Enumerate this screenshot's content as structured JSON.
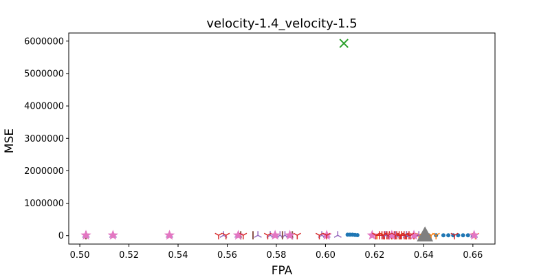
{
  "chart_data": {
    "type": "scatter",
    "title": "velocity-1.4_velocity-1.5",
    "xlabel": "FPA",
    "ylabel": "MSE",
    "xlim": [
      0.4955,
      0.669
    ],
    "ylim": [
      -260000,
      6250000
    ],
    "xticks": [
      0.5,
      0.52,
      0.54,
      0.56,
      0.58,
      0.6,
      0.62,
      0.64,
      0.66
    ],
    "xtick_labels": [
      "0.50",
      "0.52",
      "0.54",
      "0.56",
      "0.58",
      "0.60",
      "0.62",
      "0.64",
      "0.66"
    ],
    "yticks": [
      0,
      1000000,
      2000000,
      3000000,
      4000000,
      5000000,
      6000000
    ],
    "ytick_labels": [
      "0",
      "1000000",
      "2000000",
      "3000000",
      "4000000",
      "5000000",
      "6000000"
    ],
    "grid": false,
    "series": [
      {
        "marker": "circle",
        "color": "#1f77b4",
        "points": [
          [
            0.609,
            30000
          ],
          [
            0.61,
            30000
          ],
          [
            0.611,
            30000
          ],
          [
            0.612,
            20000
          ],
          [
            0.613,
            15000
          ],
          [
            0.627,
            10000
          ],
          [
            0.633,
            10000
          ],
          [
            0.636,
            10000
          ],
          [
            0.642,
            10000
          ],
          [
            0.645,
            10000
          ],
          [
            0.648,
            10000
          ],
          [
            0.65,
            10000
          ],
          [
            0.652,
            10000
          ],
          [
            0.654,
            10000
          ],
          [
            0.656,
            10000
          ],
          [
            0.658,
            10000
          ],
          [
            0.66,
            10000
          ]
        ]
      },
      {
        "marker": "tri_down",
        "color": "#ff7f0e",
        "points": [
          [
            0.621,
            10000
          ],
          [
            0.624,
            10000
          ],
          [
            0.627,
            10000
          ],
          [
            0.63,
            10000
          ],
          [
            0.633,
            10000
          ],
          [
            0.636,
            10000
          ],
          [
            0.638,
            10000
          ],
          [
            0.643,
            10000
          ],
          [
            0.645,
            10000
          ],
          [
            0.661,
            10000
          ]
        ]
      },
      {
        "marker": "x",
        "color": "#2ca02c",
        "points": [
          [
            0.6075,
            5930000
          ]
        ]
      },
      {
        "marker": "plus",
        "color": "#d62728",
        "points": [
          [
            0.622,
            10000
          ],
          [
            0.623,
            10000
          ],
          [
            0.624,
            10000
          ],
          [
            0.625,
            10000
          ],
          [
            0.626,
            10000
          ],
          [
            0.627,
            10000
          ],
          [
            0.628,
            10000
          ],
          [
            0.629,
            10000
          ],
          [
            0.63,
            10000
          ],
          [
            0.631,
            10000
          ],
          [
            0.632,
            10000
          ],
          [
            0.633,
            10000
          ],
          [
            0.634,
            10000
          ],
          [
            0.636,
            10000
          ]
        ]
      },
      {
        "marker": "tri_up",
        "color": "#9467bd",
        "points": [
          [
            0.5025,
            10000
          ],
          [
            0.5135,
            10000
          ],
          [
            0.5365,
            10000
          ],
          [
            0.5585,
            10000
          ],
          [
            0.5645,
            10000
          ],
          [
            0.5725,
            10000
          ],
          [
            0.5775,
            10000
          ],
          [
            0.5795,
            10000
          ],
          [
            0.5815,
            10000
          ],
          [
            0.5835,
            10000
          ],
          [
            0.5855,
            10000
          ],
          [
            0.5985,
            10000
          ],
          [
            0.6005,
            10000
          ],
          [
            0.605,
            10000
          ],
          [
            0.6245,
            10000
          ],
          [
            0.6285,
            10000
          ],
          [
            0.633,
            10000
          ],
          [
            0.638,
            10000
          ],
          [
            0.6605,
            10000
          ]
        ]
      },
      {
        "marker": "vline",
        "color": "#8c564b",
        "points": [
          [
            0.5025,
            10000
          ],
          [
            0.5655,
            10000
          ],
          [
            0.5705,
            10000
          ],
          [
            0.5825,
            10000
          ],
          [
            0.5865,
            10000
          ]
        ]
      },
      {
        "marker": "star",
        "color": "#e377c2",
        "points": [
          [
            0.5025,
            10000
          ],
          [
            0.5135,
            10000
          ],
          [
            0.5365,
            10000
          ],
          [
            0.5645,
            10000
          ],
          [
            0.5795,
            10000
          ],
          [
            0.5855,
            10000
          ],
          [
            0.6005,
            10000
          ],
          [
            0.619,
            10000
          ],
          [
            0.627,
            10000
          ],
          [
            0.636,
            10000
          ],
          [
            0.6605,
            10000
          ]
        ]
      },
      {
        "marker": "triangle",
        "color": "#7f7f7f",
        "points": [
          [
            0.6405,
            10000
          ]
        ]
      },
      {
        "marker": "tri_down",
        "color": "#d62728",
        "points": [
          [
            0.5565,
            10000
          ],
          [
            0.5595,
            10000
          ],
          [
            0.5665,
            10000
          ],
          [
            0.5765,
            10000
          ],
          [
            0.5885,
            10000
          ],
          [
            0.5975,
            10000
          ],
          [
            0.6005,
            10000
          ],
          [
            0.6205,
            10000
          ],
          [
            0.6235,
            10000
          ],
          [
            0.6255,
            10000
          ],
          [
            0.6285,
            10000
          ],
          [
            0.6305,
            10000
          ],
          [
            0.6325,
            10000
          ],
          [
            0.6345,
            10000
          ],
          [
            0.6525,
            10000
          ]
        ]
      }
    ]
  }
}
